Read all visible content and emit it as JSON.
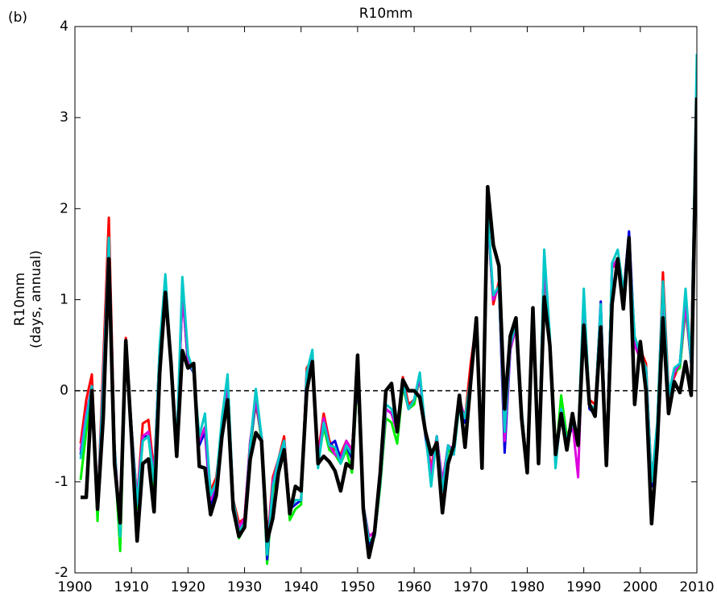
{
  "panel_label": "(b)",
  "chart_data": {
    "type": "line",
    "title": "R10mm",
    "ylabel": [
      "R10mm",
      "(days, annual)"
    ],
    "x": [
      1901,
      1902,
      1903,
      1904,
      1905,
      1906,
      1907,
      1908,
      1909,
      1910,
      1911,
      1912,
      1913,
      1914,
      1915,
      1916,
      1917,
      1918,
      1919,
      1920,
      1921,
      1922,
      1923,
      1924,
      1925,
      1926,
      1927,
      1928,
      1929,
      1930,
      1931,
      1932,
      1933,
      1934,
      1935,
      1936,
      1937,
      1938,
      1939,
      1940,
      1941,
      1942,
      1943,
      1944,
      1945,
      1946,
      1947,
      1948,
      1949,
      1950,
      1951,
      1952,
      1953,
      1954,
      1955,
      1956,
      1957,
      1958,
      1959,
      1960,
      1961,
      1962,
      1963,
      1964,
      1965,
      1966,
      1967,
      1968,
      1969,
      1970,
      1971,
      1972,
      1973,
      1974,
      1975,
      1976,
      1977,
      1978,
      1979,
      1980,
      1981,
      1982,
      1983,
      1984,
      1985,
      1986,
      1987,
      1988,
      1989,
      1990,
      1991,
      1992,
      1993,
      1994,
      1995,
      1996,
      1997,
      1998,
      1999,
      2000,
      2001,
      2002,
      2003,
      2004,
      2005,
      2006,
      2007,
      2008,
      2009,
      2010
    ],
    "xlim": [
      1900,
      2010
    ],
    "xticks": [
      1900,
      1910,
      1920,
      1930,
      1940,
      1950,
      1960,
      1970,
      1980,
      1990,
      2000,
      2010
    ],
    "ylim": [
      -2,
      4
    ],
    "yticks": [
      -2,
      -1,
      0,
      1,
      2,
      3,
      4
    ],
    "reference_line": 0,
    "series": [
      {
        "color": "#ff0000",
        "width": 3,
        "values": [
          -0.58,
          -0.1,
          0.18,
          -1.3,
          0.3,
          1.9,
          -0.6,
          -1.55,
          0.58,
          -0.4,
          -1.2,
          -0.36,
          -0.32,
          -0.9,
          0.45,
          1.1,
          0.35,
          -0.6,
          1.1,
          0.35,
          0.2,
          -0.55,
          -0.4,
          -1.1,
          -0.95,
          -0.4,
          0.1,
          -1.2,
          -1.45,
          -1.4,
          -0.55,
          -0.15,
          -0.5,
          -1.7,
          -0.95,
          -0.75,
          -0.5,
          -1.3,
          -1.2,
          -1.2,
          0.25,
          0.35,
          -0.7,
          -0.25,
          -0.55,
          -0.65,
          -0.7,
          -0.55,
          -0.65,
          0.2,
          -1.3,
          -1.6,
          -1.55,
          -1.0,
          -0.2,
          -0.25,
          -0.4,
          0.15,
          -0.15,
          -0.1,
          0.15,
          -0.45,
          -0.85,
          -0.5,
          -1.0,
          -0.65,
          -0.65,
          -0.1,
          -0.3,
          0.3,
          0.75,
          -0.8,
          1.95,
          0.95,
          1.2,
          -0.5,
          0.5,
          0.75,
          -0.25,
          -0.85,
          0.85,
          -0.75,
          1.35,
          0.55,
          -0.75,
          -0.2,
          -0.5,
          -0.35,
          -0.55,
          0.95,
          -0.1,
          -0.15,
          0.9,
          -0.75,
          1.35,
          1.4,
          1.0,
          1.65,
          0.5,
          0.45,
          0.3,
          -1.0,
          -0.4,
          1.3,
          0.0,
          0.15,
          0.3,
          0.9,
          0.35,
          3.5
        ]
      },
      {
        "color": "#00ee00",
        "width": 3,
        "values": [
          -0.98,
          -0.45,
          -0.05,
          -1.43,
          0.0,
          1.6,
          -0.7,
          -1.76,
          0.45,
          -0.5,
          -1.3,
          -0.55,
          -0.5,
          -1.05,
          0.4,
          1.15,
          0.25,
          -0.65,
          1.1,
          0.3,
          0.2,
          -0.6,
          -0.4,
          -1.2,
          -1.05,
          -0.45,
          0.1,
          -1.25,
          -1.62,
          -1.5,
          -0.65,
          -0.1,
          -0.55,
          -1.9,
          -1.1,
          -0.85,
          -0.6,
          -1.42,
          -1.3,
          -1.25,
          0.15,
          0.3,
          -0.8,
          -0.4,
          -0.65,
          -0.7,
          -0.8,
          -0.65,
          -0.9,
          0.15,
          -1.3,
          -1.65,
          -1.6,
          -1.05,
          -0.3,
          -0.35,
          -0.58,
          0.05,
          -0.2,
          -0.15,
          0.15,
          -0.5,
          -0.9,
          -0.55,
          -1.05,
          -0.65,
          -0.7,
          -0.15,
          -0.35,
          0.1,
          0.75,
          -0.85,
          1.85,
          1.0,
          1.15,
          -0.5,
          0.45,
          0.7,
          -0.25,
          -0.9,
          0.85,
          -0.8,
          1.3,
          0.55,
          -0.75,
          -0.05,
          -0.5,
          -0.4,
          -0.55,
          0.95,
          -0.15,
          -0.2,
          0.85,
          -0.8,
          1.35,
          1.45,
          1.0,
          1.6,
          0.5,
          0.35,
          0.2,
          -1.05,
          -0.4,
          1.15,
          -0.05,
          0.2,
          0.25,
          0.9,
          0.3,
          3.4
        ]
      },
      {
        "color": "#0000dd",
        "width": 3,
        "values": [
          -0.7,
          -0.3,
          0.05,
          -1.3,
          0.1,
          1.6,
          -0.65,
          -1.55,
          0.5,
          -0.45,
          -1.2,
          -0.5,
          -0.5,
          -0.95,
          0.45,
          1.15,
          0.3,
          -0.65,
          1.1,
          0.3,
          0.2,
          -0.6,
          -0.45,
          -1.25,
          -1.05,
          -0.4,
          0.1,
          -1.25,
          -1.55,
          -1.45,
          -0.6,
          -0.1,
          -0.5,
          -1.85,
          -1.05,
          -0.8,
          -0.55,
          -1.3,
          -1.25,
          -1.2,
          0.2,
          0.35,
          -0.8,
          -0.35,
          -0.6,
          -0.55,
          -0.75,
          -0.6,
          -0.75,
          0.15,
          -1.25,
          -1.7,
          -1.6,
          -1.0,
          -0.2,
          -0.25,
          -0.45,
          0.1,
          -0.2,
          -0.1,
          0.15,
          -0.5,
          -0.95,
          -0.5,
          -1.05,
          -0.6,
          -0.7,
          -0.1,
          -0.35,
          0.1,
          0.75,
          -0.85,
          1.9,
          1.0,
          1.15,
          -0.68,
          0.45,
          0.7,
          -0.25,
          -0.9,
          0.85,
          -0.8,
          1.45,
          0.5,
          -0.8,
          -0.25,
          -0.55,
          -0.4,
          -0.6,
          1.0,
          -0.2,
          -0.25,
          0.98,
          -0.8,
          1.35,
          1.45,
          1.05,
          1.75,
          0.55,
          0.35,
          0.25,
          -1.05,
          -0.4,
          1.15,
          -0.05,
          0.2,
          0.3,
          1.0,
          0.3,
          3.5
        ]
      },
      {
        "color": "#dd00dd",
        "width": 3,
        "values": [
          -0.65,
          -0.25,
          0.05,
          -1.3,
          0.15,
          1.65,
          -0.6,
          -1.5,
          0.5,
          -0.4,
          -1.2,
          -0.5,
          -0.45,
          -0.95,
          0.45,
          1.1,
          0.3,
          -0.6,
          1.05,
          0.35,
          0.2,
          -0.55,
          -0.4,
          -1.2,
          -1.0,
          -0.35,
          0.1,
          -1.25,
          -1.5,
          -1.4,
          -0.55,
          -0.1,
          -0.5,
          -1.75,
          -1.0,
          -0.75,
          -0.55,
          -1.3,
          -1.2,
          -1.2,
          0.2,
          0.35,
          -0.75,
          -0.3,
          -0.6,
          -0.7,
          -0.75,
          -0.55,
          -0.65,
          0.15,
          -1.25,
          -1.6,
          -1.55,
          -1.0,
          -0.2,
          -0.25,
          -0.45,
          0.1,
          -0.2,
          -0.1,
          0.15,
          -0.45,
          -0.9,
          -0.5,
          -1.0,
          -0.6,
          -0.65,
          -0.1,
          -0.3,
          0.1,
          0.75,
          -0.8,
          1.9,
          1.0,
          1.15,
          -0.55,
          0.45,
          0.7,
          -0.25,
          -0.85,
          0.85,
          -0.8,
          1.4,
          0.5,
          -0.75,
          -0.25,
          -0.55,
          -0.35,
          -0.95,
          0.95,
          -0.15,
          -0.2,
          0.9,
          -0.8,
          1.35,
          1.45,
          1.0,
          1.65,
          0.5,
          0.35,
          0.25,
          -1.0,
          -0.4,
          1.15,
          -0.05,
          0.2,
          0.3,
          0.95,
          0.3,
          3.5
        ]
      },
      {
        "color": "#00c8c8",
        "width": 3,
        "values": [
          -0.75,
          -0.3,
          0.05,
          -1.3,
          0.1,
          1.68,
          -0.6,
          -1.6,
          0.5,
          -0.4,
          -1.25,
          -0.55,
          -0.5,
          -1.0,
          0.5,
          1.28,
          0.3,
          -0.6,
          1.25,
          0.4,
          0.2,
          -0.5,
          -0.25,
          -1.15,
          -1.0,
          -0.3,
          0.18,
          -1.2,
          -1.55,
          -1.45,
          -0.6,
          0.02,
          -0.5,
          -1.8,
          -1.05,
          -0.75,
          -0.55,
          -1.3,
          -1.2,
          -1.2,
          0.2,
          0.45,
          -0.85,
          -0.35,
          -0.6,
          -0.62,
          -0.8,
          -0.6,
          -0.7,
          0.2,
          -1.25,
          -1.65,
          -1.6,
          -1.0,
          -0.15,
          -0.2,
          -0.4,
          0.1,
          -0.2,
          -0.1,
          0.2,
          -0.45,
          -1.05,
          -0.5,
          -1.1,
          -0.6,
          -0.7,
          -0.15,
          -0.3,
          0.15,
          0.8,
          -0.85,
          1.95,
          1.05,
          1.15,
          -0.45,
          0.5,
          0.75,
          -0.2,
          -0.9,
          0.9,
          -0.8,
          1.55,
          0.6,
          -0.85,
          -0.2,
          -0.55,
          -0.35,
          -0.55,
          1.12,
          -0.15,
          -0.2,
          0.95,
          -0.8,
          1.4,
          1.55,
          1.1,
          1.6,
          0.6,
          0.4,
          0.25,
          -1.0,
          -0.35,
          1.2,
          -0.05,
          0.25,
          0.3,
          1.12,
          0.3,
          3.7
        ]
      },
      {
        "color": "#000000",
        "width": 4.5,
        "values": [
          -1.17,
          -1.17,
          0.0,
          -1.3,
          -0.3,
          1.45,
          -0.8,
          -1.45,
          0.55,
          -0.5,
          -1.65,
          -0.8,
          -0.75,
          -1.33,
          0.2,
          1.08,
          0.3,
          -0.72,
          0.44,
          0.25,
          0.3,
          -0.83,
          -0.85,
          -1.36,
          -1.15,
          -0.5,
          -0.1,
          -1.3,
          -1.6,
          -1.5,
          -0.75,
          -0.46,
          -0.55,
          -1.65,
          -1.4,
          -0.9,
          -0.65,
          -1.35,
          -1.05,
          -1.1,
          0.0,
          0.32,
          -0.8,
          -0.72,
          -0.78,
          -0.88,
          -1.1,
          -0.8,
          -0.85,
          0.39,
          -1.3,
          -1.83,
          -1.55,
          -0.9,
          0.0,
          0.08,
          -0.45,
          0.12,
          0.0,
          0.0,
          -0.07,
          -0.45,
          -0.7,
          -0.57,
          -1.34,
          -0.8,
          -0.6,
          -0.05,
          -0.62,
          0.1,
          0.8,
          -0.85,
          2.24,
          1.6,
          1.37,
          -0.2,
          0.6,
          0.8,
          -0.3,
          -0.9,
          0.91,
          -0.8,
          1.03,
          0.5,
          -0.7,
          -0.25,
          -0.65,
          -0.25,
          -0.6,
          0.72,
          -0.15,
          -0.28,
          0.7,
          -0.82,
          0.95,
          1.45,
          0.9,
          1.68,
          -0.15,
          0.54,
          0.0,
          -1.46,
          -0.6,
          0.8,
          -0.25,
          0.1,
          -0.02,
          0.32,
          -0.05,
          3.22
        ]
      }
    ]
  }
}
